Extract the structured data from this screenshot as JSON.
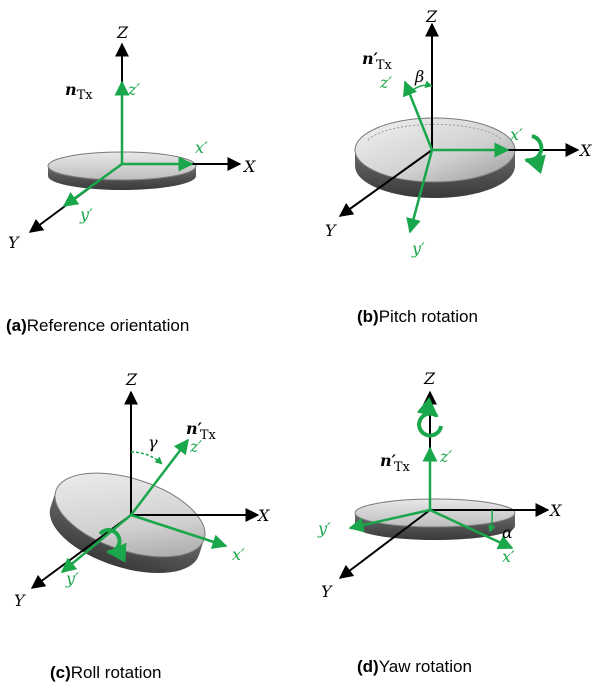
{
  "colors": {
    "axis": "#000000",
    "body_axis": "#1aa64a",
    "disc_top": "#d9d9d9",
    "disc_side": "#555555"
  },
  "panels": {
    "a": {
      "caption_label": "(a)",
      "caption_text": "Reference orientation",
      "axis_x": "X",
      "axis_y": "Y",
      "axis_z": "Z",
      "body_x": "x′",
      "body_y": "y′",
      "body_z": "z′",
      "normal_symbol": "n",
      "normal_sub": "Tx"
    },
    "b": {
      "caption_label": "(b)",
      "caption_text": "Pitch rotation",
      "axis_x": "X",
      "axis_y": "Y",
      "axis_z": "Z",
      "body_x": "x′",
      "body_y": "y′",
      "body_z": "z′",
      "normal_symbol": "n′",
      "normal_sub": "Tx",
      "angle": "β"
    },
    "c": {
      "caption_label": "(c)",
      "caption_text": "Roll rotation",
      "axis_x": "X",
      "axis_y": "Y",
      "axis_z": "Z",
      "body_x": "x′",
      "body_y": "y′",
      "body_z": "z′",
      "normal_symbol": "n′",
      "normal_sub": "Tx",
      "angle": "γ"
    },
    "d": {
      "caption_label": "(d)",
      "caption_text": "Yaw rotation",
      "axis_x": "X",
      "axis_y": "Y",
      "axis_z": "Z",
      "body_x": "x′",
      "body_y": "y′",
      "body_z": "z′",
      "normal_symbol": "n′",
      "normal_sub": "Tx",
      "angle": "α"
    }
  }
}
